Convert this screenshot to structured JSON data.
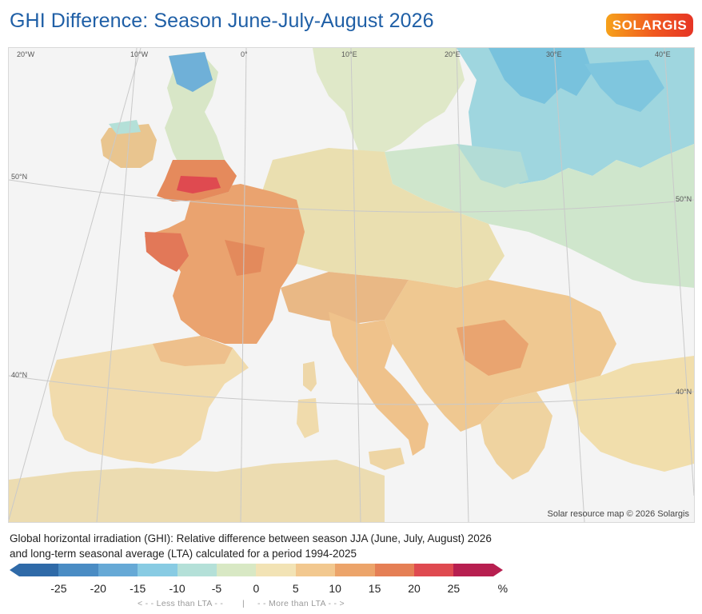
{
  "header": {
    "title": "GHI Difference: Season June-July-August 2026",
    "logo_text": "SOLARGIS"
  },
  "map": {
    "graticule_labels": [
      "20°W",
      "10°W",
      "0°",
      "10°E",
      "20°E",
      "30°E",
      "40°E",
      "50°N",
      "50°N",
      "40°N",
      "40°N"
    ],
    "copyright": "Solar resource map © 2026 Solargis"
  },
  "caption": {
    "line1": "Global horizontal irradiation (GHI): Relative difference between season JJA (June, July, August) 2026",
    "line2": "and long-term seasonal average (LTA) calculated for a period 1994-2025"
  },
  "legend": {
    "colors": [
      "#2f6aa8",
      "#4a8cc4",
      "#66a9d6",
      "#88cbe3",
      "#b4e0d8",
      "#d8e8c4",
      "#f2e3b5",
      "#f2c88f",
      "#eca46a",
      "#e57f55",
      "#df4a50",
      "#b71f50"
    ],
    "ticks": [
      "-25",
      "-20",
      "-15",
      "-10",
      "-5",
      "0",
      "5",
      "10",
      "15",
      "20",
      "25",
      "%"
    ],
    "less_than": "< - -  Less than LTA  - -",
    "separator": "|",
    "more_than": "- -  More than LTA  - - >"
  }
}
